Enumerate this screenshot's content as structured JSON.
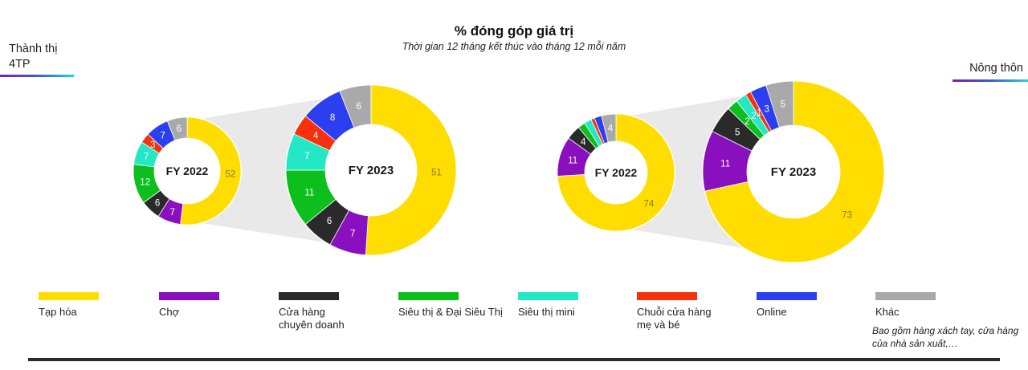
{
  "title": "% đóng góp giá trị",
  "subtitle": "Thời gian 12 tháng kết thúc vào tháng 12 mỗi năm",
  "regions": {
    "left": "Thành thị\n4TP",
    "right": "Nông thôn"
  },
  "legend": [
    {
      "label": "Tạp hóa",
      "color": "#FFDD00"
    },
    {
      "label": "Chợ",
      "color": "#8A0FBE"
    },
    {
      "label": "Cửa hàng\nchuyên doanh",
      "color": "#2A2A2A"
    },
    {
      "label": "Siêu thị & Đại Siêu Thị",
      "color": "#0CBF1C"
    },
    {
      "label": "Siêu thị mini",
      "color": "#22E8C5"
    },
    {
      "label": "Chuỗi cửa hàng\nmẹ và bé",
      "color": "#F7300E"
    },
    {
      "label": "Online",
      "color": "#2B3FF0"
    },
    {
      "label": "Khác",
      "color": "#A9A9A9"
    }
  ],
  "legend_note": "Bao gồm hàng xách tay, cửa hàng của nhà sản xuất,…",
  "chart_data": [
    {
      "type": "pie",
      "group": "Thành thị 4TP",
      "center_label": "FY 2022",
      "categories": [
        "Tạp hóa",
        "Chợ",
        "Cửa hàng chuyên doanh",
        "Siêu thị & Đại Siêu Thị",
        "Siêu thị mini",
        "Chuỗi cửa hàng mẹ và bé",
        "Online",
        "Khác"
      ],
      "values": [
        52,
        7,
        6,
        12,
        7,
        3,
        7,
        6
      ],
      "labels": [
        "52",
        "7",
        "6",
        "12",
        "7",
        "3",
        "7",
        "6"
      ]
    },
    {
      "type": "pie",
      "group": "Thành thị 4TP",
      "center_label": "FY 2023",
      "categories": [
        "Tạp hóa",
        "Chợ",
        "Cửa hàng chuyên doanh",
        "Siêu thị & Đại Siêu Thị",
        "Siêu thị mini",
        "Chuỗi cửa hàng mẹ và bé",
        "Online",
        "Khác"
      ],
      "values": [
        51,
        7,
        6,
        11,
        7,
        4,
        8,
        6
      ],
      "labels": [
        "51",
        "7",
        "6",
        "11",
        "7",
        "4",
        "8",
        "6"
      ]
    },
    {
      "type": "pie",
      "group": "Nông thôn",
      "center_label": "FY 2022",
      "categories": [
        "Tạp hóa",
        "Chợ",
        "Cửa hàng chuyên doanh",
        "Siêu thị & Đại Siêu Thị",
        "Siêu thị mini",
        "Chuỗi cửa hàng mẹ và bé",
        "Online",
        "Khác"
      ],
      "values": [
        74,
        11,
        4,
        2,
        2,
        1,
        2,
        4
      ],
      "labels": [
        "74",
        "11",
        "4",
        "",
        "",
        "",
        "",
        "4"
      ]
    },
    {
      "type": "pie",
      "group": "Nông thôn",
      "center_label": "FY 2023",
      "categories": [
        "Tạp hóa",
        "Chợ",
        "Cửa hàng chuyên doanh",
        "Siêu thị & Đại Siêu Thị",
        "Siêu thị mini",
        "Chuỗi cửa hàng mẹ và bé",
        "Online",
        "Khác"
      ],
      "values": [
        73,
        11,
        5,
        2,
        2,
        1,
        3,
        5
      ],
      "labels": [
        "73",
        "11",
        "5",
        "2",
        "2",
        "1",
        "3",
        "5"
      ]
    }
  ]
}
